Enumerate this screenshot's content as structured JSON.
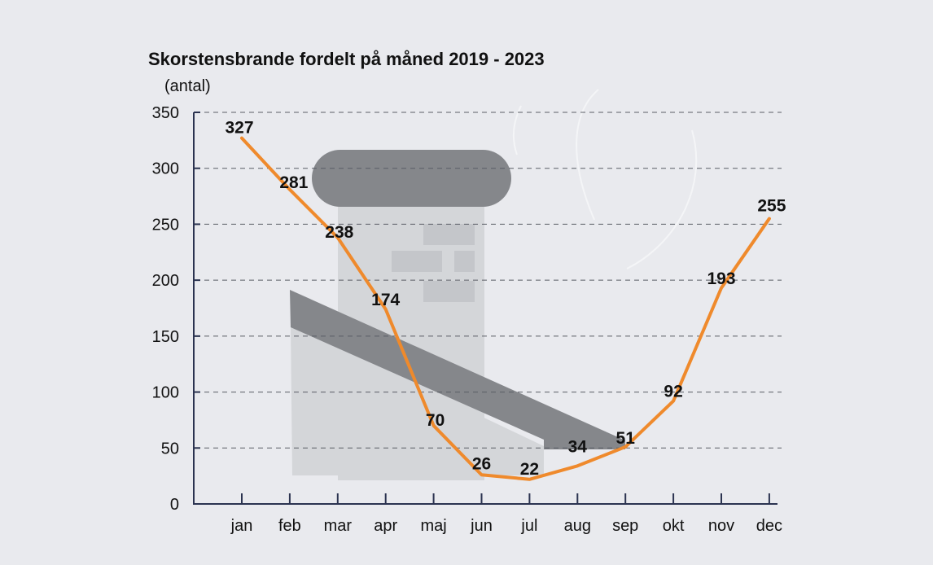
{
  "colors": {
    "background": "#e9eaee",
    "line": "#ef8a2c",
    "axis": "#2b3350",
    "grid": "#5a5e66",
    "chimney_dark": "#85878b",
    "chimney_light": "#d4d6d9",
    "brick": "#c4c6ca"
  },
  "chart_data": {
    "type": "line",
    "title": "Skorstensbrande fordelt på måned 2019 - 2023",
    "ylabel": "(antal)",
    "xlabel": "",
    "categories": [
      "jan",
      "feb",
      "mar",
      "apr",
      "maj",
      "jun",
      "jul",
      "aug",
      "sep",
      "okt",
      "nov",
      "dec"
    ],
    "values": [
      327,
      281,
      238,
      174,
      70,
      26,
      22,
      34,
      51,
      92,
      193,
      255
    ],
    "ylim": [
      0,
      350
    ],
    "yticks": [
      "0",
      "50",
      "100",
      "150",
      "200",
      "250",
      "300",
      "350"
    ],
    "grid": true,
    "data_labels": true
  }
}
